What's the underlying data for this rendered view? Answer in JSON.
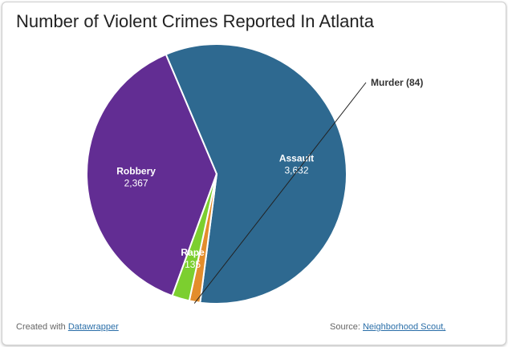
{
  "title": "Number of Violent Crimes Reported In Atlanta",
  "footer": {
    "created_with_label": "Created with",
    "created_with_link": "Datawrapper",
    "source_label": "Source:",
    "source_link": "Neighborhood Scout,"
  },
  "chart_data": {
    "type": "pie",
    "title": "Number of Violent Crimes Reported In Atlanta",
    "slices": [
      {
        "label": "Assault",
        "value": 3632,
        "display": "3,632",
        "color": "#2e6990"
      },
      {
        "label": "Murder",
        "value": 84,
        "display": "84",
        "callout": "Murder (84)",
        "color": "#e38d2c"
      },
      {
        "label": "Rape",
        "value": 135,
        "display": "135",
        "color": "#7ccf2f"
      },
      {
        "label": "Robbery",
        "value": 2367,
        "display": "2,367",
        "color": "#622d93"
      }
    ]
  }
}
